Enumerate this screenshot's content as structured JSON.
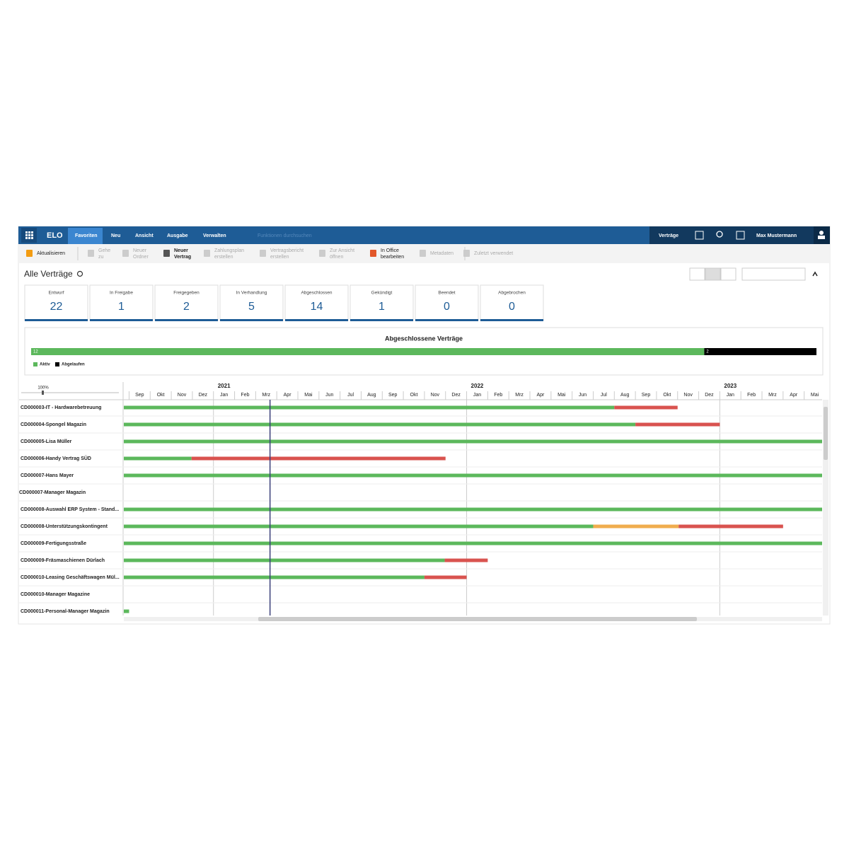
{
  "app": {
    "logo": "ELO",
    "tabs": [
      "Favoriten",
      "Neu",
      "Ansicht",
      "Ausgabe",
      "Verwalten"
    ],
    "search_placeholder": "Funktionen durchsuchen",
    "context": "Verträge",
    "user": "Max Mustermann"
  },
  "toolbar": [
    {
      "lines": [
        "Aktualisieren"
      ],
      "enabled": true
    },
    {
      "lines": [
        "Gehe",
        "zu"
      ],
      "enabled": false
    },
    {
      "lines": [
        "Neuer",
        "Ordner"
      ],
      "enabled": false
    },
    {
      "lines": [
        "Neuer",
        "Vertrag"
      ],
      "enabled": true
    },
    {
      "lines": [
        "Zahlungsplan",
        "erstellen"
      ],
      "enabled": false
    },
    {
      "lines": [
        "Vertragsbericht",
        "erstellen"
      ],
      "enabled": false
    },
    {
      "lines": [
        "Zur Ansicht",
        "öffnen"
      ],
      "enabled": false
    },
    {
      "lines": [
        "In Office",
        "bearbeiten"
      ],
      "enabled": true
    },
    {
      "lines": [
        "Metadaten"
      ],
      "enabled": false
    },
    {
      "lines": [
        "Zuletzt verwendet"
      ],
      "enabled": false
    }
  ],
  "view": {
    "title": "Alle Verträge",
    "status_cards": [
      {
        "label": "Entwurf",
        "count": 22
      },
      {
        "label": "In Freigabe",
        "count": 1
      },
      {
        "label": "Freigegeben",
        "count": 2
      },
      {
        "label": "In Verhandlung",
        "count": 5
      },
      {
        "label": "Abgeschlossen",
        "count": 14
      },
      {
        "label": "Gekündigt",
        "count": 1
      },
      {
        "label": "Beendet",
        "count": 0
      },
      {
        "label": "Abgebrochen",
        "count": 0
      }
    ]
  },
  "summary": {
    "title": "Abgeschlossene Verträge",
    "segments": [
      {
        "name": "Aktiv",
        "value": 12,
        "color": "#5cb85c"
      },
      {
        "name": "Abgelaufen",
        "value": 2,
        "color": "#000000"
      }
    ]
  },
  "timeline": {
    "zoom": "100%",
    "years": [
      "2021",
      "2022",
      "2023"
    ],
    "months": [
      "Sep",
      "Okt",
      "Nov",
      "Dez",
      "Jan",
      "Feb",
      "Mrz",
      "Apr",
      "Mai",
      "Jun",
      "Jul",
      "Aug",
      "Sep",
      "Okt",
      "Nov",
      "Dez",
      "Jan",
      "Feb",
      "Mrz",
      "Apr",
      "Mai",
      "Jun",
      "Jul",
      "Aug",
      "Sep",
      "Okt",
      "Nov",
      "Dez",
      "Jan",
      "Feb",
      "Mrz",
      "Apr",
      "Mai"
    ],
    "xlim": [
      -0.25,
      32.85
    ],
    "today": 6.68,
    "rows": [
      {
        "label": "CD000003-IT - Hardwarebetreuung",
        "segments": [
          {
            "start": -0.25,
            "end": 23.0,
            "color": "#5cb85c"
          },
          {
            "start": 23.0,
            "end": 26.0,
            "color": "#d9534f"
          }
        ]
      },
      {
        "label": "CD000004-Spongel Magazin",
        "segments": [
          {
            "start": -0.25,
            "end": 24.0,
            "color": "#5cb85c"
          },
          {
            "start": 24.0,
            "end": 28.0,
            "color": "#d9534f"
          }
        ]
      },
      {
        "label": "CD000005-Lisa Müller",
        "segments": [
          {
            "start": -0.25,
            "end": 32.85,
            "color": "#5cb85c"
          }
        ]
      },
      {
        "label": "CD000006-Handy Vertrag SÜD",
        "segments": [
          {
            "start": -0.25,
            "end": 2.96,
            "color": "#5cb85c"
          },
          {
            "start": 2.96,
            "end": 15.0,
            "color": "#d9534f"
          }
        ]
      },
      {
        "label": "CD000007-Hans Mayer",
        "segments": [
          {
            "start": -0.25,
            "end": 32.85,
            "color": "#5cb85c"
          }
        ]
      },
      {
        "label": "CD000007-Manager Magazin",
        "segments": []
      },
      {
        "label": "CD000008-Auswahl ERP System - Stand...",
        "segments": [
          {
            "start": -0.25,
            "end": 32.85,
            "color": "#5cb85c"
          }
        ]
      },
      {
        "label": "CD000008-Unterstützungskontingent",
        "segments": [
          {
            "start": -0.25,
            "end": 22.0,
            "color": "#5cb85c"
          },
          {
            "start": 22.0,
            "end": 26.05,
            "color": "#f0ad4e"
          },
          {
            "start": 26.05,
            "end": 31.0,
            "color": "#d9534f"
          }
        ]
      },
      {
        "label": "CD000009-Fertigungsstraße",
        "segments": [
          {
            "start": -0.25,
            "end": 32.85,
            "color": "#5cb85c"
          }
        ]
      },
      {
        "label": "CD000009-Fräsmaschienen Dürlach",
        "segments": [
          {
            "start": -0.25,
            "end": 14.96,
            "color": "#5cb85c"
          },
          {
            "start": 14.96,
            "end": 17.0,
            "color": "#d9534f"
          }
        ]
      },
      {
        "label": "CD000010-Leasing Geschäftswagen Mül...",
        "segments": [
          {
            "start": -0.25,
            "end": 14.0,
            "color": "#5cb85c"
          },
          {
            "start": 14.0,
            "end": 16.0,
            "color": "#d9534f"
          }
        ]
      },
      {
        "label": "CD000010-Manager Magazine",
        "segments": []
      },
      {
        "label": "CD000011-Personal-Manager Magazin",
        "segments": [
          {
            "start": -0.25,
            "end": 0.0,
            "color": "#5cb85c"
          }
        ]
      }
    ]
  }
}
